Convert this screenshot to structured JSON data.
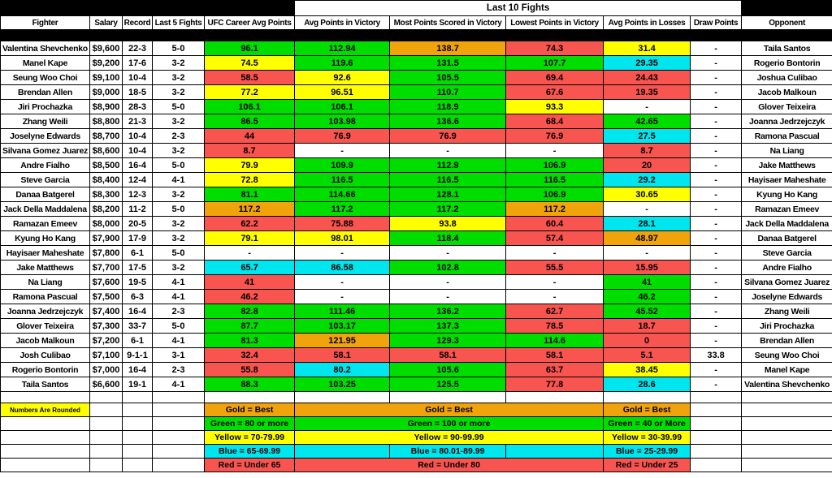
{
  "header": {
    "group_label": "Last 10 Fights",
    "columns": [
      "Fighter",
      "Salary",
      "Record",
      "Last 5 Fights",
      "UFC Career Avg Points",
      "Avg Points in Victory",
      "Most Points Scored in Victory",
      "Lowest Points in Victory",
      "Avg Points in Losses",
      "Draw Points",
      "Opponent"
    ]
  },
  "colors": {
    "green": "#00DE00",
    "yellow": "#FFFF00",
    "red": "#F85450",
    "blue": "#00E6EE",
    "gold": "#F0A30A",
    "white": "#FFFFFF",
    "header_bg": "#000000"
  },
  "rows": [
    {
      "fighter": "Valentina Shevchenko",
      "salary": "$9,600",
      "record": "22-3",
      "last5": "5-0",
      "career": {
        "v": "96.1",
        "c": "green"
      },
      "avg_win": {
        "v": "112.94",
        "c": "green"
      },
      "most_win": {
        "v": "138.7",
        "c": "gold"
      },
      "low_win": {
        "v": "74.3",
        "c": "red"
      },
      "avg_loss": {
        "v": "31.4",
        "c": "yellow"
      },
      "draw": "-",
      "opponent": "Taila Santos"
    },
    {
      "fighter": "Manel Kape",
      "salary": "$9,200",
      "record": "17-6",
      "last5": "3-2",
      "career": {
        "v": "74.5",
        "c": "yellow"
      },
      "avg_win": {
        "v": "119.6",
        "c": "green"
      },
      "most_win": {
        "v": "131.5",
        "c": "green"
      },
      "low_win": {
        "v": "107.7",
        "c": "green"
      },
      "avg_loss": {
        "v": "29.35",
        "c": "blue"
      },
      "draw": "-",
      "opponent": "Rogerio Bontorin"
    },
    {
      "fighter": "Seung Woo Choi",
      "salary": "$9,100",
      "record": "10-4",
      "last5": "3-2",
      "career": {
        "v": "58.5",
        "c": "red"
      },
      "avg_win": {
        "v": "92.6",
        "c": "yellow"
      },
      "most_win": {
        "v": "105.5",
        "c": "green"
      },
      "low_win": {
        "v": "69.4",
        "c": "red"
      },
      "avg_loss": {
        "v": "24.43",
        "c": "red"
      },
      "draw": "-",
      "opponent": "Joshua Culibao"
    },
    {
      "fighter": "Brendan Allen",
      "salary": "$9,000",
      "record": "18-5",
      "last5": "3-2",
      "career": {
        "v": "77.2",
        "c": "yellow"
      },
      "avg_win": {
        "v": "96.51",
        "c": "yellow"
      },
      "most_win": {
        "v": "110.7",
        "c": "green"
      },
      "low_win": {
        "v": "67.6",
        "c": "red"
      },
      "avg_loss": {
        "v": "19.35",
        "c": "red"
      },
      "draw": "-",
      "opponent": "Jacob Malkoun"
    },
    {
      "fighter": "Jiri Prochazka",
      "salary": "$8,900",
      "record": "28-3",
      "last5": "5-0",
      "career": {
        "v": "106.1",
        "c": "green"
      },
      "avg_win": {
        "v": "106.1",
        "c": "green"
      },
      "most_win": {
        "v": "118.9",
        "c": "green"
      },
      "low_win": {
        "v": "93.3",
        "c": "yellow"
      },
      "avg_loss": {
        "v": "-",
        "c": "white"
      },
      "draw": "-",
      "opponent": "Glover Teixeira"
    },
    {
      "fighter": "Zhang Weili",
      "salary": "$8,800",
      "record": "21-3",
      "last5": "3-2",
      "career": {
        "v": "86.5",
        "c": "green"
      },
      "avg_win": {
        "v": "103.98",
        "c": "green"
      },
      "most_win": {
        "v": "136.6",
        "c": "green"
      },
      "low_win": {
        "v": "68.4",
        "c": "red"
      },
      "avg_loss": {
        "v": "42.65",
        "c": "green"
      },
      "draw": "-",
      "opponent": "Joanna Jedrzejczyk"
    },
    {
      "fighter": "Joselyne Edwards",
      "salary": "$8,700",
      "record": "10-4",
      "last5": "2-3",
      "career": {
        "v": "44",
        "c": "red"
      },
      "avg_win": {
        "v": "76.9",
        "c": "red"
      },
      "most_win": {
        "v": "76.9",
        "c": "red"
      },
      "low_win": {
        "v": "76.9",
        "c": "red"
      },
      "avg_loss": {
        "v": "27.5",
        "c": "blue"
      },
      "draw": "-",
      "opponent": "Ramona Pascual"
    },
    {
      "fighter": "Silvana Gomez Juarez",
      "salary": "$8,600",
      "record": "10-4",
      "last5": "3-2",
      "career": {
        "v": "8.7",
        "c": "red"
      },
      "avg_win": {
        "v": "-",
        "c": "white"
      },
      "most_win": {
        "v": "-",
        "c": "white"
      },
      "low_win": {
        "v": "-",
        "c": "white"
      },
      "avg_loss": {
        "v": "8.7",
        "c": "red"
      },
      "draw": "-",
      "opponent": "Na Liang"
    },
    {
      "fighter": "Andre Fialho",
      "salary": "$8,500",
      "record": "16-4",
      "last5": "5-0",
      "career": {
        "v": "79.9",
        "c": "yellow"
      },
      "avg_win": {
        "v": "109.9",
        "c": "green"
      },
      "most_win": {
        "v": "112.9",
        "c": "green"
      },
      "low_win": {
        "v": "106.9",
        "c": "green"
      },
      "avg_loss": {
        "v": "20",
        "c": "red"
      },
      "draw": "-",
      "opponent": "Jake Matthews"
    },
    {
      "fighter": "Steve Garcia",
      "salary": "$8,400",
      "record": "12-4",
      "last5": "4-1",
      "career": {
        "v": "72.8",
        "c": "yellow"
      },
      "avg_win": {
        "v": "116.5",
        "c": "green"
      },
      "most_win": {
        "v": "116.5",
        "c": "green"
      },
      "low_win": {
        "v": "116.5",
        "c": "green"
      },
      "avg_loss": {
        "v": "29.2",
        "c": "blue"
      },
      "draw": "-",
      "opponent": "Hayisaer Maheshate"
    },
    {
      "fighter": "Danaa Batgerel",
      "salary": "$8,300",
      "record": "12-3",
      "last5": "3-2",
      "career": {
        "v": "81.1",
        "c": "green"
      },
      "avg_win": {
        "v": "114.66",
        "c": "green"
      },
      "most_win": {
        "v": "128.1",
        "c": "green"
      },
      "low_win": {
        "v": "106.9",
        "c": "green"
      },
      "avg_loss": {
        "v": "30.65",
        "c": "yellow"
      },
      "draw": "-",
      "opponent": "Kyung Ho Kang"
    },
    {
      "fighter": "Jack Della Maddalena",
      "salary": "$8,200",
      "record": "11-2",
      "last5": "5-0",
      "career": {
        "v": "117.2",
        "c": "gold"
      },
      "avg_win": {
        "v": "117.2",
        "c": "green"
      },
      "most_win": {
        "v": "117.2",
        "c": "green"
      },
      "low_win": {
        "v": "117.2",
        "c": "gold"
      },
      "avg_loss": {
        "v": "-",
        "c": "white"
      },
      "draw": "-",
      "opponent": "Ramazan Emeev"
    },
    {
      "fighter": "Ramazan Emeev",
      "salary": "$8,000",
      "record": "20-5",
      "last5": "3-2",
      "career": {
        "v": "62.2",
        "c": "red"
      },
      "avg_win": {
        "v": "75.88",
        "c": "red"
      },
      "most_win": {
        "v": "93.8",
        "c": "yellow"
      },
      "low_win": {
        "v": "60.4",
        "c": "red"
      },
      "avg_loss": {
        "v": "28.1",
        "c": "blue"
      },
      "draw": "-",
      "opponent": "Jack Della Maddalena"
    },
    {
      "fighter": "Kyung Ho Kang",
      "salary": "$7,900",
      "record": "17-9",
      "last5": "3-2",
      "career": {
        "v": "79.1",
        "c": "yellow"
      },
      "avg_win": {
        "v": "98.01",
        "c": "yellow"
      },
      "most_win": {
        "v": "118.4",
        "c": "green"
      },
      "low_win": {
        "v": "57.4",
        "c": "red"
      },
      "avg_loss": {
        "v": "48.97",
        "c": "gold"
      },
      "draw": "-",
      "opponent": "Danaa Batgerel"
    },
    {
      "fighter": "Hayisaer Maheshate",
      "salary": "$7,800",
      "record": "6-1",
      "last5": "5-0",
      "career": {
        "v": "-",
        "c": "white"
      },
      "avg_win": {
        "v": "-",
        "c": "white"
      },
      "most_win": {
        "v": "-",
        "c": "white"
      },
      "low_win": {
        "v": "-",
        "c": "white"
      },
      "avg_loss": {
        "v": "-",
        "c": "white"
      },
      "draw": "-",
      "opponent": "Steve Garcia"
    },
    {
      "fighter": "Jake Matthews",
      "salary": "$7,700",
      "record": "17-5",
      "last5": "3-2",
      "career": {
        "v": "65.7",
        "c": "blue"
      },
      "avg_win": {
        "v": "86.58",
        "c": "blue"
      },
      "most_win": {
        "v": "102.8",
        "c": "green"
      },
      "low_win": {
        "v": "55.5",
        "c": "red"
      },
      "avg_loss": {
        "v": "15.95",
        "c": "red"
      },
      "draw": "-",
      "opponent": "Andre Fialho"
    },
    {
      "fighter": "Na Liang",
      "salary": "$7,600",
      "record": "19-5",
      "last5": "4-1",
      "career": {
        "v": "41",
        "c": "red"
      },
      "avg_win": {
        "v": "-",
        "c": "white"
      },
      "most_win": {
        "v": "-",
        "c": "white"
      },
      "low_win": {
        "v": "-",
        "c": "white"
      },
      "avg_loss": {
        "v": "41",
        "c": "green"
      },
      "draw": "-",
      "opponent": "Silvana Gomez Juarez"
    },
    {
      "fighter": "Ramona Pascual",
      "salary": "$7,500",
      "record": "6-3",
      "last5": "4-1",
      "career": {
        "v": "46.2",
        "c": "red"
      },
      "avg_win": {
        "v": "-",
        "c": "white"
      },
      "most_win": {
        "v": "-",
        "c": "white"
      },
      "low_win": {
        "v": "-",
        "c": "white"
      },
      "avg_loss": {
        "v": "46.2",
        "c": "green"
      },
      "draw": "-",
      "opponent": "Joselyne Edwards"
    },
    {
      "fighter": "Joanna Jedrzejczyk",
      "salary": "$7,400",
      "record": "16-4",
      "last5": "2-3",
      "career": {
        "v": "82.8",
        "c": "green"
      },
      "avg_win": {
        "v": "111.46",
        "c": "green"
      },
      "most_win": {
        "v": "136.2",
        "c": "green"
      },
      "low_win": {
        "v": "62.7",
        "c": "red"
      },
      "avg_loss": {
        "v": "45.52",
        "c": "green"
      },
      "draw": "-",
      "opponent": "Zhang Weili"
    },
    {
      "fighter": "Glover Teixeira",
      "salary": "$7,300",
      "record": "33-7",
      "last5": "5-0",
      "career": {
        "v": "87.7",
        "c": "green"
      },
      "avg_win": {
        "v": "103.17",
        "c": "green"
      },
      "most_win": {
        "v": "137.3",
        "c": "green"
      },
      "low_win": {
        "v": "78.5",
        "c": "red"
      },
      "avg_loss": {
        "v": "18.7",
        "c": "red"
      },
      "draw": "-",
      "opponent": "Jiri Prochazka"
    },
    {
      "fighter": "Jacob Malkoun",
      "salary": "$7,200",
      "record": "6-1",
      "last5": "4-1",
      "career": {
        "v": "81.3",
        "c": "green"
      },
      "avg_win": {
        "v": "121.95",
        "c": "gold"
      },
      "most_win": {
        "v": "129.3",
        "c": "green"
      },
      "low_win": {
        "v": "114.6",
        "c": "green"
      },
      "avg_loss": {
        "v": "0",
        "c": "red"
      },
      "draw": "-",
      "opponent": "Brendan Allen"
    },
    {
      "fighter": "Josh Culibao",
      "salary": "$7,100",
      "record": "9-1-1",
      "last5": "3-1",
      "career": {
        "v": "32.4",
        "c": "red"
      },
      "avg_win": {
        "v": "58.1",
        "c": "red"
      },
      "most_win": {
        "v": "58.1",
        "c": "red"
      },
      "low_win": {
        "v": "58.1",
        "c": "red"
      },
      "avg_loss": {
        "v": "5.1",
        "c": "red"
      },
      "draw": "33.8",
      "opponent": "Seung Woo Choi"
    },
    {
      "fighter": "Rogerio Bontorin",
      "salary": "$7,000",
      "record": "16-4",
      "last5": "2-3",
      "career": {
        "v": "55.8",
        "c": "red"
      },
      "avg_win": {
        "v": "80.2",
        "c": "blue"
      },
      "most_win": {
        "v": "105.6",
        "c": "green"
      },
      "low_win": {
        "v": "63.7",
        "c": "red"
      },
      "avg_loss": {
        "v": "38.45",
        "c": "yellow"
      },
      "draw": "-",
      "opponent": "Manel Kape"
    },
    {
      "fighter": "Taila Santos",
      "salary": "$6,600",
      "record": "19-1",
      "last5": "4-1",
      "career": {
        "v": "88.3",
        "c": "green"
      },
      "avg_win": {
        "v": "103.25",
        "c": "green"
      },
      "most_win": {
        "v": "125.5",
        "c": "green"
      },
      "low_win": {
        "v": "77.8",
        "c": "red"
      },
      "avg_loss": {
        "v": "28.6",
        "c": "blue"
      },
      "draw": "-",
      "opponent": "Valentina Shevchenko"
    }
  ],
  "legend": {
    "note": "Numbers Are Rounded",
    "row_colors": [
      "gold",
      "green",
      "yellow",
      "blue",
      "red"
    ],
    "career": [
      "Gold = Best",
      "Green = 80 or more",
      "Yellow = 70-79.99",
      "Blue = 65-69.99",
      "Red = Under 65"
    ],
    "victory": [
      "Gold = Best",
      "Green = 100 or more",
      "Yellow = 90-99.99",
      "Blue = 80.01-89.99",
      "Red = Under 80"
    ],
    "losses": [
      "Gold = Best",
      "Green = 40 or More",
      "Yellow = 30-39.99",
      "Blue = 25-29.99",
      "Red = Under 25"
    ]
  }
}
